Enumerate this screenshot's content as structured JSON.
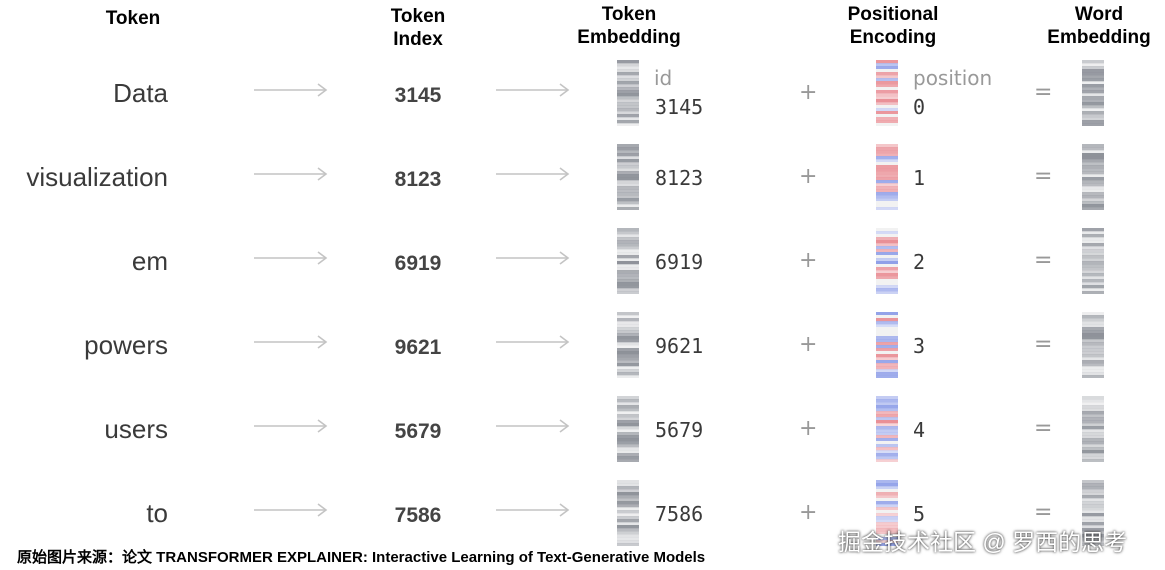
{
  "headers": {
    "token": "Token",
    "token_index": "Token\nIndex",
    "token_embedding": "Token\nEmbedding",
    "positional_encoding": "Positional\nEncoding",
    "word_embedding": "Word\nEmbedding"
  },
  "labels": {
    "id": "id",
    "position": "position",
    "plus": "+",
    "equals": "="
  },
  "rows": [
    {
      "token": "Data",
      "index": "3145",
      "embedding_id": "3145",
      "position": "0"
    },
    {
      "token": "visualization",
      "index": "8123",
      "embedding_id": "8123",
      "position": "1"
    },
    {
      "token": "em",
      "index": "6919",
      "embedding_id": "6919",
      "position": "2"
    },
    {
      "token": "powers",
      "index": "9621",
      "embedding_id": "9621",
      "position": "3"
    },
    {
      "token": "users",
      "index": "5679",
      "embedding_id": "5679",
      "position": "4"
    },
    {
      "token": "to",
      "index": "7586",
      "embedding_id": "7586",
      "position": "5"
    }
  ],
  "source": "原始图片来源：论文 TRANSFORMER EXPLAINER: Interactive Learning of Text-Generative Models",
  "watermark": "掘金技术社区 @ 罗西的思考",
  "colors": {
    "gray_stripe": "#8a8e96",
    "red_stripe": "#e98f96",
    "blue_stripe": "#8e9ee8",
    "arrow": "#c4c4c4"
  }
}
